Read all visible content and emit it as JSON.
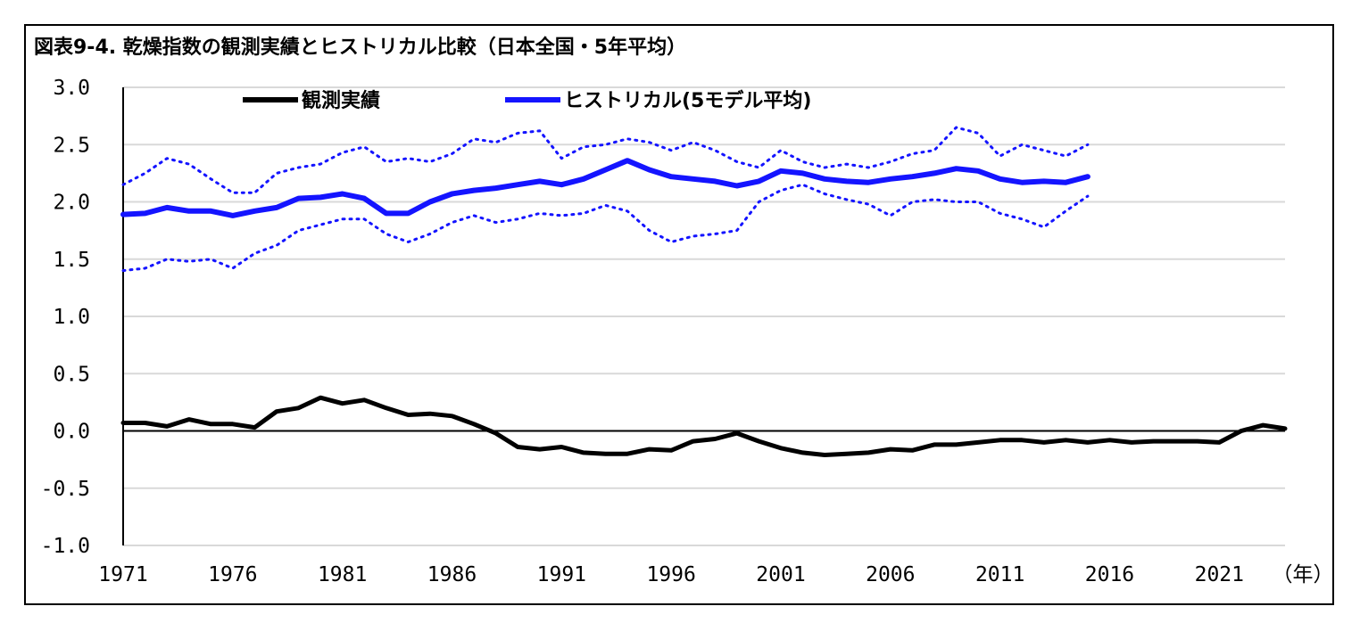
{
  "title": "図表9-4. 乾燥指数の観測実績とヒストリカル比較（日本全国・5年平均）",
  "chart_data": {
    "type": "line",
    "title": "図表9-4. 乾燥指数の観測実績とヒストリカル比較（日本全国・5年平均）",
    "xlabel": "（年）",
    "ylabel": "",
    "xlim": [
      1971,
      2024
    ],
    "ylim": [
      -1.0,
      3.0
    ],
    "x_ticks": [
      1971,
      1976,
      1981,
      1986,
      1991,
      1996,
      2001,
      2006,
      2011,
      2016,
      2021
    ],
    "y_ticks": [
      "3.0",
      "2.5",
      "2.0",
      "1.5",
      "1.0",
      "0.5",
      "0.0",
      "-0.5",
      "-1.0"
    ],
    "grid": "horizontal",
    "legend_position": "top",
    "colors": {
      "observed": "#000000",
      "historical": "#1414ff"
    },
    "series": [
      {
        "name": "観測実績",
        "x": [
          1971,
          1972,
          1973,
          1974,
          1975,
          1976,
          1977,
          1978,
          1979,
          1980,
          1981,
          1982,
          1983,
          1984,
          1985,
          1986,
          1987,
          1988,
          1989,
          1990,
          1991,
          1992,
          1993,
          1994,
          1995,
          1996,
          1997,
          1998,
          1999,
          2000,
          2001,
          2002,
          2003,
          2004,
          2005,
          2006,
          2007,
          2008,
          2009,
          2010,
          2011,
          2012,
          2013,
          2014,
          2015,
          2016,
          2017,
          2018,
          2019,
          2020,
          2021,
          2022,
          2023,
          2024
        ],
        "values": [
          0.07,
          0.07,
          0.04,
          0.1,
          0.06,
          0.06,
          0.03,
          0.17,
          0.2,
          0.29,
          0.24,
          0.27,
          0.2,
          0.14,
          0.15,
          0.13,
          0.06,
          -0.02,
          -0.14,
          -0.16,
          -0.14,
          -0.19,
          -0.2,
          -0.2,
          -0.16,
          -0.17,
          -0.09,
          -0.07,
          -0.02,
          -0.09,
          -0.15,
          -0.19,
          -0.21,
          -0.2,
          -0.19,
          -0.16,
          -0.17,
          -0.12,
          -0.12,
          -0.1,
          -0.08,
          -0.08,
          -0.1,
          -0.08,
          -0.1,
          -0.08,
          -0.1,
          -0.09,
          -0.09,
          -0.09,
          -0.1,
          0.0,
          0.05,
          0.02
        ]
      },
      {
        "name": "ヒストリカル(5モデル平均)",
        "x": [
          1971,
          1972,
          1973,
          1974,
          1975,
          1976,
          1977,
          1978,
          1979,
          1980,
          1981,
          1982,
          1983,
          1984,
          1985,
          1986,
          1987,
          1988,
          1989,
          1990,
          1991,
          1992,
          1993,
          1994,
          1995,
          1996,
          1997,
          1998,
          1999,
          2000,
          2001,
          2002,
          2003,
          2004,
          2005,
          2006,
          2007,
          2008,
          2009,
          2010,
          2011,
          2012,
          2013,
          2014,
          2015
        ],
        "values": [
          1.89,
          1.9,
          1.95,
          1.92,
          1.92,
          1.88,
          1.92,
          1.95,
          2.03,
          2.04,
          2.07,
          2.03,
          1.9,
          1.9,
          2.0,
          2.07,
          2.1,
          2.12,
          2.15,
          2.18,
          2.15,
          2.2,
          2.28,
          2.36,
          2.28,
          2.22,
          2.2,
          2.18,
          2.14,
          2.18,
          2.27,
          2.25,
          2.2,
          2.18,
          2.17,
          2.2,
          2.22,
          2.25,
          2.29,
          2.27,
          2.2,
          2.17,
          2.18,
          2.17,
          2.22
        ]
      },
      {
        "name": "",
        "style": "dotted",
        "x": [
          1971,
          1972,
          1973,
          1974,
          1975,
          1976,
          1977,
          1978,
          1979,
          1980,
          1981,
          1982,
          1983,
          1984,
          1985,
          1986,
          1987,
          1988,
          1989,
          1990,
          1991,
          1992,
          1993,
          1994,
          1995,
          1996,
          1997,
          1998,
          1999,
          2000,
          2001,
          2002,
          2003,
          2004,
          2005,
          2006,
          2007,
          2008,
          2009,
          2010,
          2011,
          2012,
          2013,
          2014,
          2015
        ],
        "values": [
          2.15,
          2.25,
          2.38,
          2.33,
          2.2,
          2.08,
          2.08,
          2.25,
          2.3,
          2.33,
          2.43,
          2.48,
          2.35,
          2.38,
          2.35,
          2.42,
          2.55,
          2.52,
          2.6,
          2.62,
          2.38,
          2.48,
          2.5,
          2.55,
          2.52,
          2.45,
          2.52,
          2.45,
          2.35,
          2.3,
          2.45,
          2.35,
          2.3,
          2.33,
          2.3,
          2.35,
          2.42,
          2.45,
          2.65,
          2.6,
          2.4,
          2.5,
          2.45,
          2.4,
          2.5
        ]
      },
      {
        "name": "",
        "style": "dotted",
        "x": [
          1971,
          1972,
          1973,
          1974,
          1975,
          1976,
          1977,
          1978,
          1979,
          1980,
          1981,
          1982,
          1983,
          1984,
          1985,
          1986,
          1987,
          1988,
          1989,
          1990,
          1991,
          1992,
          1993,
          1994,
          1995,
          1996,
          1997,
          1998,
          1999,
          2000,
          2001,
          2002,
          2003,
          2004,
          2005,
          2006,
          2007,
          2008,
          2009,
          2010,
          2011,
          2012,
          2013,
          2014,
          2015
        ],
        "values": [
          1.4,
          1.42,
          1.5,
          1.48,
          1.5,
          1.42,
          1.55,
          1.62,
          1.75,
          1.8,
          1.85,
          1.85,
          1.72,
          1.65,
          1.72,
          1.82,
          1.88,
          1.82,
          1.85,
          1.9,
          1.88,
          1.9,
          1.97,
          1.92,
          1.75,
          1.65,
          1.7,
          1.72,
          1.75,
          2.0,
          2.1,
          2.15,
          2.07,
          2.02,
          1.98,
          1.88,
          2.0,
          2.02,
          2.0,
          2.0,
          1.9,
          1.85,
          1.78,
          1.92,
          2.05
        ]
      }
    ]
  }
}
